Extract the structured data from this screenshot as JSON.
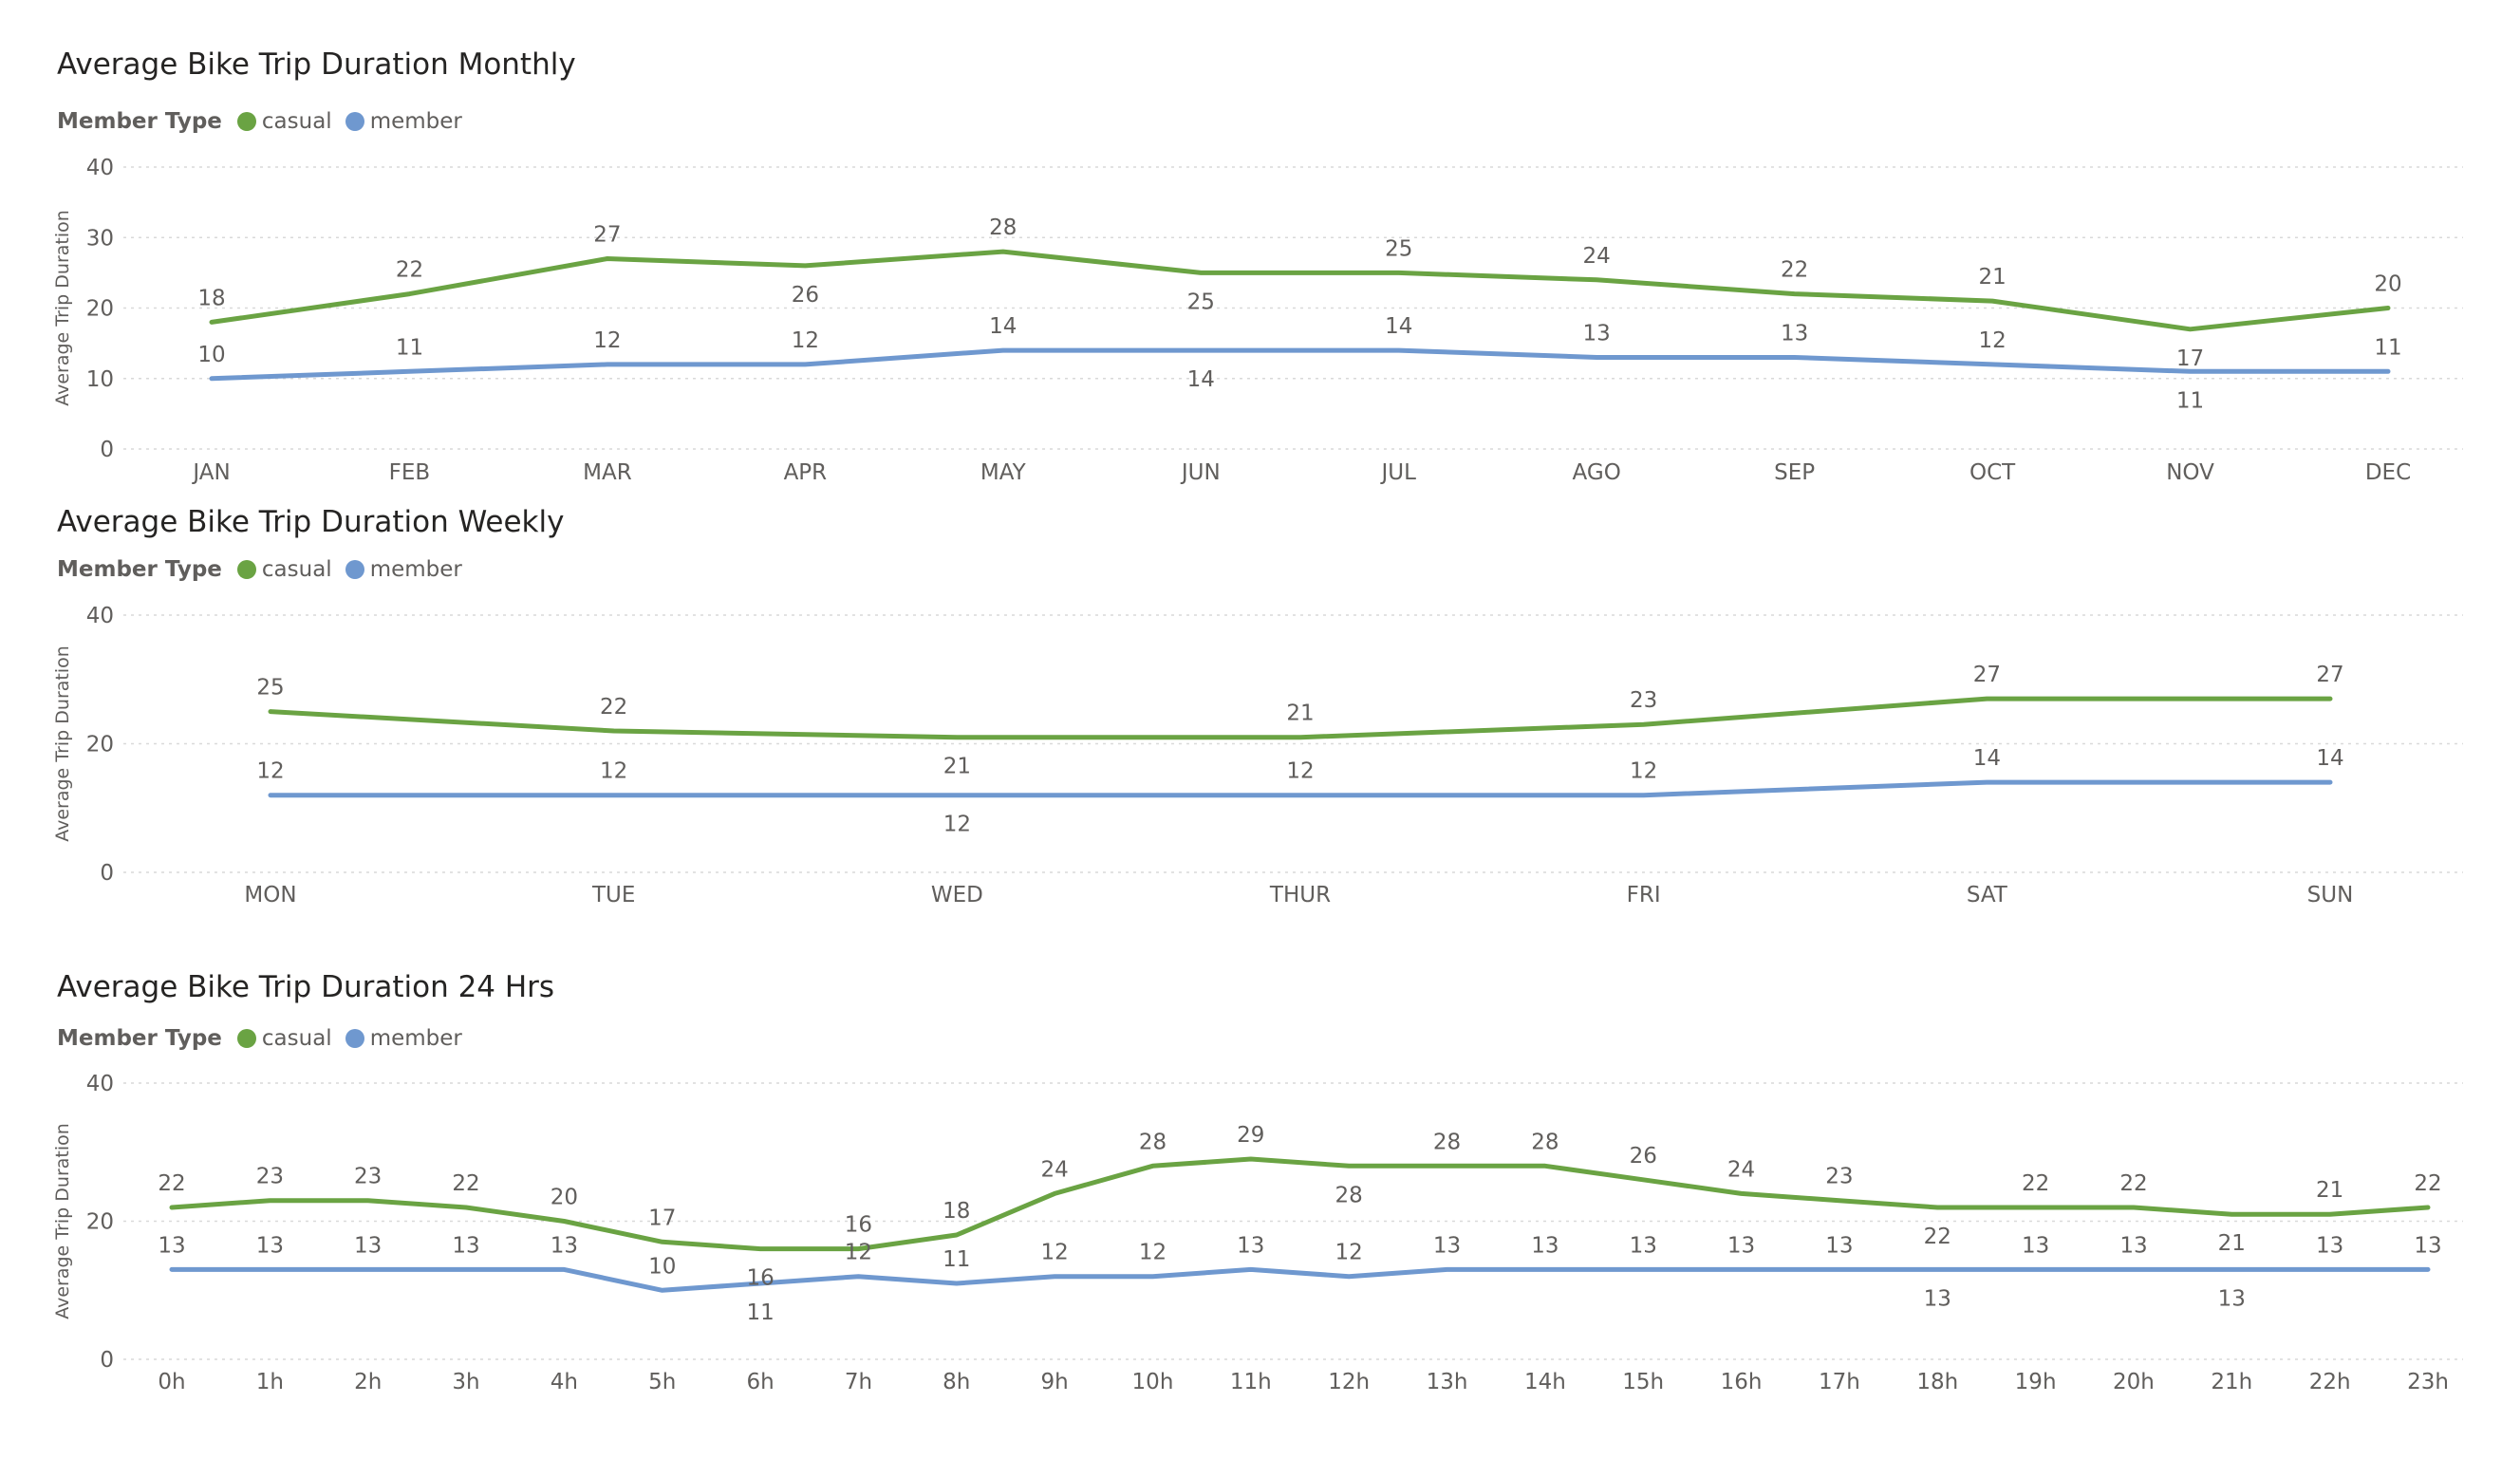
{
  "colors": {
    "casual": "#6aa343",
    "member": "#6f98cf",
    "grid": "#d9d9d9",
    "text": "#605e5c"
  },
  "chart_data": [
    {
      "type": "line",
      "title": "Average Bike Trip Duration Monthly",
      "legend_title": "Member Type",
      "ylabel": "Average Trip Duration",
      "xlabel": "",
      "categories": [
        "JAN",
        "FEB",
        "MAR",
        "APR",
        "MAY",
        "JUN",
        "JUL",
        "AGO",
        "SEP",
        "OCT",
        "NOV",
        "DEC"
      ],
      "yticks": [
        "0",
        "10",
        "20",
        "30",
        "40"
      ],
      "ylim": [
        0,
        40
      ],
      "grid": true,
      "legend_position": "top-left",
      "series": [
        {
          "name": "casual",
          "values": [
            18,
            22,
            27,
            26,
            28,
            25,
            25,
            24,
            22,
            21,
            17,
            20
          ]
        },
        {
          "name": "member",
          "values": [
            10,
            11,
            12,
            12,
            14,
            14,
            14,
            13,
            13,
            12,
            11,
            11
          ]
        }
      ]
    },
    {
      "type": "line",
      "title": "Average Bike Trip Duration Weekly",
      "legend_title": "Member Type",
      "ylabel": "Average Trip Duration",
      "xlabel": "",
      "categories": [
        "MON",
        "TUE",
        "WED",
        "THUR",
        "FRI",
        "SAT",
        "SUN"
      ],
      "yticks": [
        "0",
        "20",
        "40"
      ],
      "ylim": [
        0,
        40
      ],
      "grid": true,
      "legend_position": "top-left",
      "series": [
        {
          "name": "casual",
          "values": [
            25,
            22,
            21,
            21,
            23,
            27,
            27
          ]
        },
        {
          "name": "member",
          "values": [
            12,
            12,
            12,
            12,
            12,
            14,
            14
          ]
        }
      ]
    },
    {
      "type": "line",
      "title": "Average Bike Trip Duration 24 Hrs",
      "legend_title": "Member Type",
      "ylabel": "Average Trip Duration",
      "xlabel": "",
      "categories": [
        "0h",
        "1h",
        "2h",
        "3h",
        "4h",
        "5h",
        "6h",
        "7h",
        "8h",
        "9h",
        "10h",
        "11h",
        "12h",
        "13h",
        "14h",
        "15h",
        "16h",
        "17h",
        "18h",
        "19h",
        "20h",
        "21h",
        "22h",
        "23h"
      ],
      "yticks": [
        "0",
        "20",
        "40"
      ],
      "ylim": [
        0,
        40
      ],
      "grid": true,
      "legend_position": "top-left",
      "series": [
        {
          "name": "casual",
          "values": [
            22,
            23,
            23,
            22,
            20,
            17,
            16,
            16,
            18,
            24,
            28,
            29,
            28,
            28,
            28,
            26,
            24,
            23,
            22,
            22,
            22,
            21,
            21,
            22
          ]
        },
        {
          "name": "member",
          "values": [
            13,
            13,
            13,
            13,
            13,
            10,
            11,
            12,
            11,
            12,
            12,
            13,
            12,
            13,
            13,
            13,
            13,
            13,
            13,
            13,
            13,
            13,
            13,
            13
          ]
        }
      ]
    }
  ]
}
